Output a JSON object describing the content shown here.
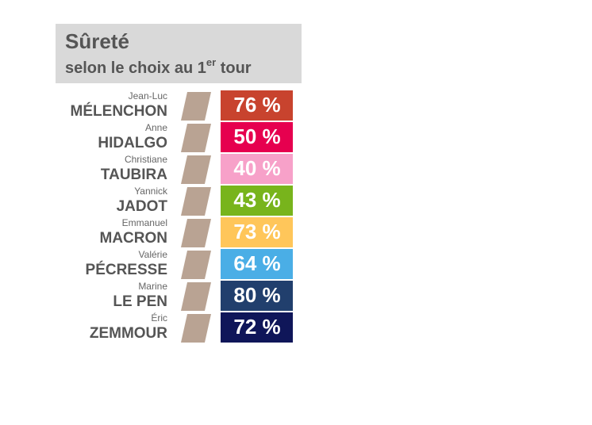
{
  "header": {
    "title": "Sûreté",
    "subtitle": [
      "selon le choix au 1",
      "er",
      " tour"
    ]
  },
  "rows": [
    {
      "first_name": "Jean-Luc",
      "last_name": "MÉLENCHON",
      "value": "76 %",
      "color": "#c8432e"
    },
    {
      "first_name": "Anne",
      "last_name": "HIDALGO",
      "value": "50 %",
      "color": "#e6004f"
    },
    {
      "first_name": "Christiane",
      "last_name": "TAUBIRA",
      "value": "40 %",
      "color": "#f7a1c9"
    },
    {
      "first_name": "Yannick",
      "last_name": "JADOT",
      "value": "43 %",
      "color": "#78b41c"
    },
    {
      "first_name": "Emmanuel",
      "last_name": "MACRON",
      "value": "73 %",
      "color": "#ffc65a"
    },
    {
      "first_name": "Valérie",
      "last_name": "PÉCRESSE",
      "value": "64 %",
      "color": "#4aaee6"
    },
    {
      "first_name": "Marine",
      "last_name": "LE PEN",
      "value": "80 %",
      "color": "#213f6d"
    },
    {
      "first_name": "Éric",
      "last_name": "ZEMMOUR",
      "value": "72 %",
      "color": "#0f1659"
    }
  ]
}
